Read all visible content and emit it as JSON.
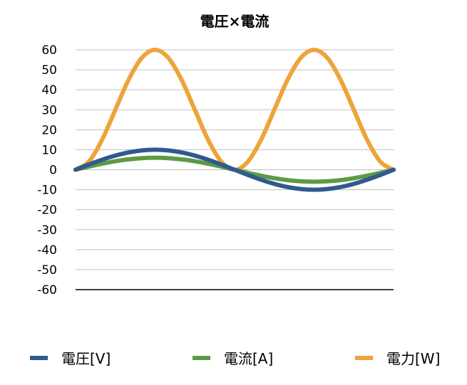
{
  "chart_data": {
    "type": "line",
    "title": "電圧×電流",
    "xlabel": "",
    "ylabel": "",
    "ylim": [
      -60,
      60
    ],
    "yticks": [
      60,
      50,
      40,
      30,
      20,
      10,
      0,
      -10,
      -20,
      -30,
      -40,
      -50,
      -60
    ],
    "grid": true,
    "legend_position": "bottom",
    "x": [
      0,
      15,
      30,
      45,
      60,
      75,
      90,
      105,
      120,
      135,
      150,
      165,
      180,
      195,
      210,
      225,
      240,
      255,
      270,
      285,
      300,
      315,
      330,
      345,
      360
    ],
    "series": [
      {
        "name": "電圧[V]",
        "color": "#2e5a8f",
        "values": [
          0,
          2.59,
          5,
          7.07,
          8.66,
          9.66,
          10,
          9.66,
          8.66,
          7.07,
          5,
          2.59,
          0,
          -2.59,
          -5,
          -7.07,
          -8.66,
          -9.66,
          -10,
          -9.66,
          -8.66,
          -7.07,
          -5,
          -2.59,
          0
        ]
      },
      {
        "name": "電流[A]",
        "color": "#5e9a45",
        "values": [
          0,
          1.55,
          3,
          4.24,
          5.2,
          5.8,
          6,
          5.8,
          5.2,
          4.24,
          3,
          1.55,
          0,
          -1.55,
          -3,
          -4.24,
          -5.2,
          -5.8,
          -6,
          -5.8,
          -5.2,
          -4.24,
          -3,
          -1.55,
          0
        ]
      },
      {
        "name": "電力[W]",
        "color": "#eda43b",
        "values": [
          0,
          4.02,
          15,
          30,
          45,
          55.98,
          60,
          55.98,
          45,
          30,
          15,
          4.02,
          0,
          4.02,
          15,
          30,
          45,
          55.98,
          60,
          55.98,
          45,
          30,
          15,
          4.02,
          0
        ]
      }
    ]
  }
}
